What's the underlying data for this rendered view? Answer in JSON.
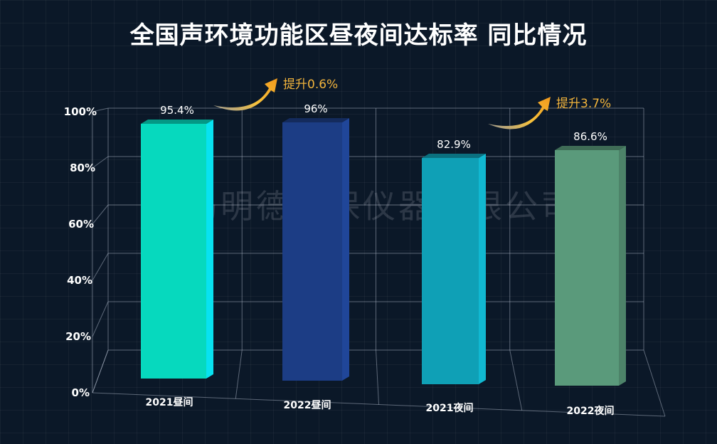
{
  "chart_data": {
    "type": "bar",
    "title": "全国声环境功能区昼夜间达标率 同比情况",
    "categories": [
      "2021昼间",
      "2022昼间",
      "2021夜间",
      "2022夜间"
    ],
    "values": [
      95.4,
      96,
      82.9,
      86.6
    ],
    "value_labels": [
      "95.4%",
      "96%",
      "82.9%",
      "86.6%"
    ],
    "y_ticks": [
      "0%",
      "20%",
      "40%",
      "60%",
      "80%",
      "100%"
    ],
    "ylim": [
      0,
      100
    ],
    "grid": true,
    "bar_colors": [
      "#06d9be",
      "#1c3d85",
      "#0fa0b6",
      "#5a9a7b"
    ],
    "annotations": [
      {
        "text": "提升0.6%",
        "color": "#f2b43c"
      },
      {
        "text": "提升3.7%",
        "color": "#f2b43c"
      }
    ],
    "watermark": "青岛明德环保仪器有限公司"
  }
}
